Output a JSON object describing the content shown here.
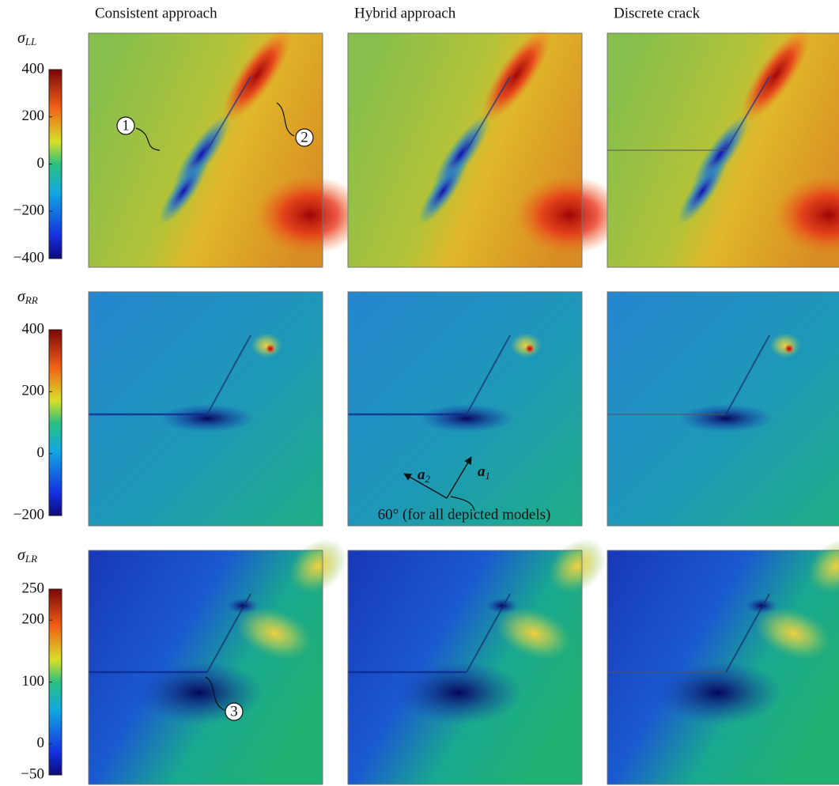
{
  "columns": [
    "Consistent approach",
    "Hybrid approach",
    "Discrete crack"
  ],
  "rows": [
    {
      "symbol": "σ",
      "subscript": "LL",
      "colorbar": {
        "lim": [
          -400,
          400
        ],
        "ticks": [
          400,
          200,
          0,
          {
            "value": -200,
            "label": "−200"
          },
          {
            "value": -400,
            "label": "−400"
          }
        ]
      }
    },
    {
      "symbol": "σ",
      "subscript": "RR",
      "colorbar": {
        "lim": [
          -200,
          400
        ],
        "ticks": [
          400,
          200,
          0,
          {
            "value": -200,
            "label": "−200"
          }
        ]
      }
    },
    {
      "symbol": "σ",
      "subscript": "LR",
      "colorbar": {
        "lim": [
          -50,
          250
        ],
        "ticks": [
          250,
          200,
          100,
          0,
          {
            "value": -50,
            "label": "−50"
          }
        ]
      }
    }
  ],
  "annotations": {
    "markers": [
      "1",
      "2",
      "3"
    ],
    "vector_1": {
      "symbol": "a",
      "subscript": "1"
    },
    "vector_2": {
      "symbol": "a",
      "subscript": "2"
    },
    "angle_note": "60° (for all depicted models)"
  }
}
